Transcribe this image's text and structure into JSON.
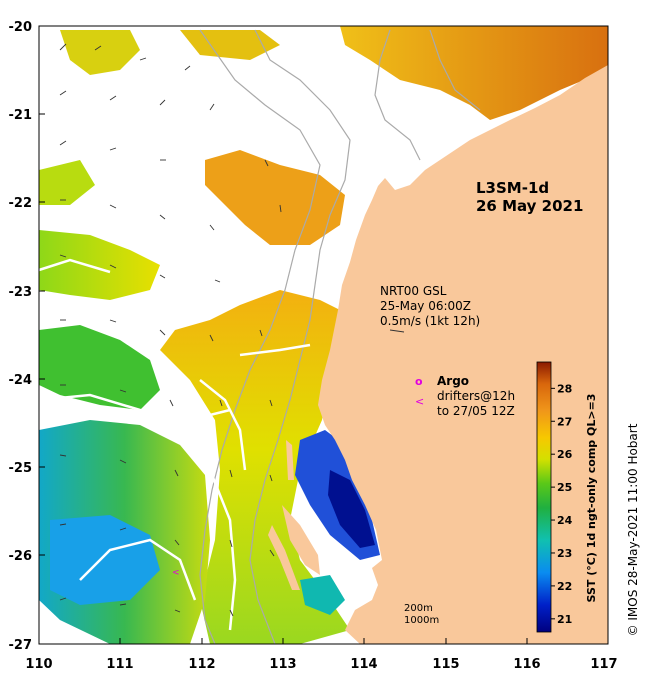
{
  "title": {
    "line1": "L3SM-1d",
    "line2": "26 May 2021"
  },
  "current_info": {
    "line1": "NRT00 GSL",
    "line2": "25-May 06:00Z",
    "line3": "0.5m/s (1kt 12h)"
  },
  "argo_legend": {
    "marker": "o",
    "label": "Argo",
    "drifter_marker": "<",
    "drifter_line1": "drifters@12h",
    "drifter_line2": "to 27/05 12Z"
  },
  "isobaths": {
    "line1": "200m",
    "line2": "1000m"
  },
  "colorbar": {
    "label": "SST (°C) 1d ngt-only comp QL>=3",
    "ticks": [
      "21",
      "22",
      "23",
      "24",
      "25",
      "26",
      "27",
      "28"
    ],
    "min": 20.6,
    "max": 28.8
  },
  "credit": "© IMOS 28-May-2021 11:00 Hobart",
  "axes": {
    "x_ticks": [
      "110",
      "111",
      "112",
      "113",
      "114",
      "115",
      "116",
      "117"
    ],
    "y_ticks": [
      "-20",
      "-21",
      "-22",
      "-23",
      "-24",
      "-25",
      "-26",
      "-27"
    ]
  },
  "colors": {
    "land": "#f9c89b",
    "isobath": "#aaaaaa",
    "argo": "#e000e0"
  }
}
